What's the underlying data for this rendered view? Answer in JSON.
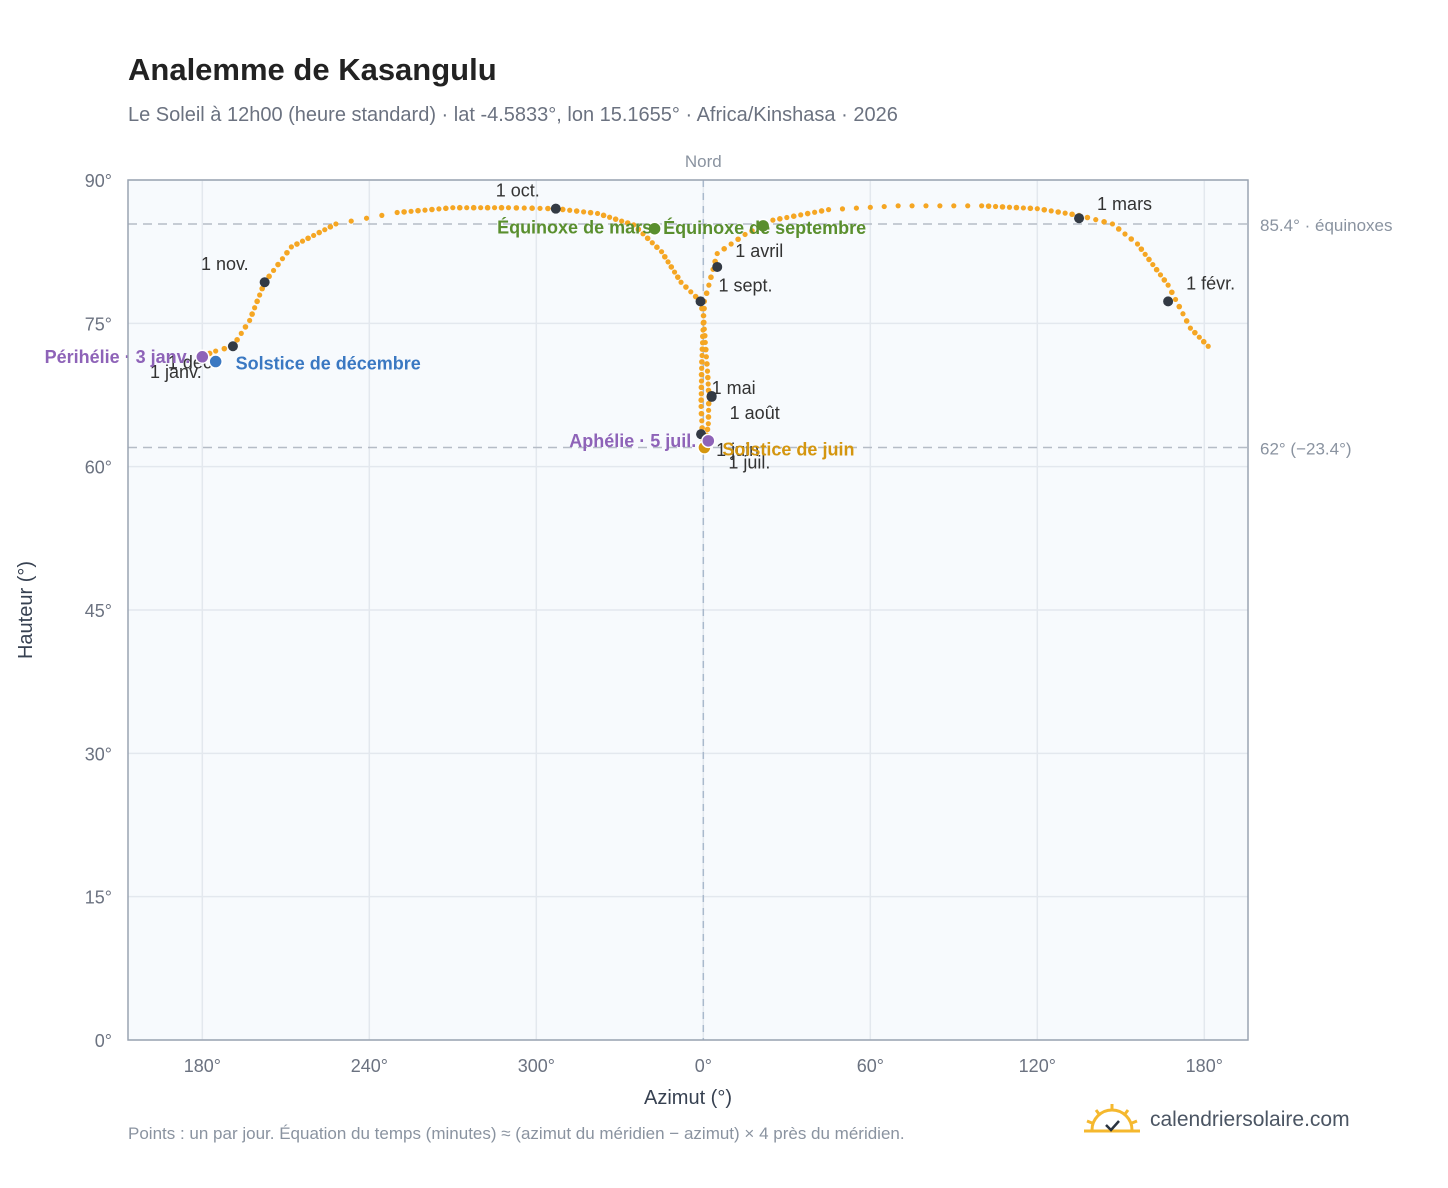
{
  "header": {
    "title": "Analemme de Kasangulu",
    "subtitle": "Le Soleil à 12h00 (heure standard) · lat -4.5833°, lon 15.1655° · Africa/Kinshasa · 2026"
  },
  "footer": {
    "note": "Points : un par jour. Équation du temps (minutes) ≈ (azimut du méridien − azimut) × 4 près du méridien.",
    "brand": "calendriersolaire.com"
  },
  "colors": {
    "curve": "#f5a623",
    "month_dot": "#333a44",
    "equinox": "#5a8f2e",
    "june_solstice": "#d4960f",
    "december_solstice": "#3a78c2",
    "apsis": "#8e63b8",
    "plot_bg": "#f7fafd",
    "grid": "#e3e8ee",
    "ref_line": "#b5bcc6"
  },
  "chart_data": {
    "type": "scatter",
    "xlabel": "Azimut (°)",
    "ylabel": "Hauteur (°)",
    "x_ticks": [
      "180°",
      "240°",
      "300°",
      "0°",
      "60°",
      "120°",
      "180°"
    ],
    "y_ticks": [
      "0°",
      "15°",
      "30°",
      "45°",
      "60°",
      "75°",
      "90°"
    ],
    "ylim": [
      0,
      90
    ],
    "xlim_shifted_deg": [
      153.3,
      555.7
    ],
    "north_label": "Nord",
    "grid": true,
    "reference_lines": [
      {
        "altitude": 85.4,
        "label": "85.4° · équinoxes"
      },
      {
        "altitude": 62,
        "label": "62° (−23.4°)"
      }
    ],
    "curve": {
      "description": "daily sun position at 12:00 standard time (one point per day)",
      "segments": [
        {
          "points": [
            [
              180.5,
              71.6
            ],
            [
              184.8,
              72.1
            ],
            [
              191.0,
              72.6
            ],
            [
              197.0,
              75.3
            ],
            [
              202.4,
              79.3
            ],
            [
              212.0,
              83.0
            ],
            [
              228.0,
              85.4
            ],
            [
              250.0,
              86.6
            ],
            [
              270.0,
              87.1
            ],
            [
              290.0,
              87.1
            ],
            [
              307.0,
              87.0
            ],
            [
              322.0,
              86.5
            ],
            [
              335.0,
              85.3
            ],
            [
              345.0,
              82.5
            ],
            [
              352.0,
              79.3
            ],
            [
              359.0,
              77.3
            ],
            [
              360.0,
              75.8
            ],
            [
              360.7,
              73.0
            ],
            [
              361.5,
              70.0
            ],
            [
              362.0,
              67.3
            ],
            [
              361.8,
              64.5
            ],
            [
              361.2,
              63.3
            ],
            [
              360.4,
              62.1
            ],
            [
              359.7,
              63.3
            ],
            [
              359.2,
              66.3
            ],
            [
              359.4,
              70.3
            ],
            [
              359.9,
              74.3
            ],
            [
              360.4,
              77.3
            ],
            [
              362.0,
              79.0
            ],
            [
              365.0,
              82.3
            ],
            [
              375.0,
              84.3
            ],
            [
              385.0,
              85.8
            ],
            [
              405.0,
              86.9
            ],
            [
              430.0,
              87.3
            ],
            [
              460.0,
              87.3
            ],
            [
              480.0,
              87.0
            ],
            [
              495.0,
              86.3
            ],
            [
              507.0,
              85.4
            ],
            [
              516.0,
              83.3
            ],
            [
              527.0,
              79.0
            ],
            [
              535.0,
              74.5
            ],
            [
              541.4,
              72.6
            ]
          ]
        }
      ]
    },
    "month_markers": [
      {
        "label": "1 janv.",
        "azimuth": 180.5,
        "altitude": 71.6
      },
      {
        "label": "1 févr.",
        "azimuth": 527.0,
        "altitude": 77.3
      },
      {
        "label": "1 mars",
        "azimuth": 495.0,
        "altitude": 86.0
      },
      {
        "label": "1 avril",
        "azimuth": 365.0,
        "altitude": 80.9
      },
      {
        "label": "1 mai",
        "azimuth": 363.0,
        "altitude": 67.4
      },
      {
        "label": "1 juin",
        "azimuth": 359.2,
        "altitude": 63.4
      },
      {
        "label": "1 juil.",
        "azimuth": 360.4,
        "altitude": 62.1
      },
      {
        "label": "1 août",
        "azimuth": 363.0,
        "altitude": 67.3
      },
      {
        "label": "1 sept.",
        "azimuth": 359.0,
        "altitude": 77.3
      },
      {
        "label": "1 oct.",
        "azimuth": 307.0,
        "altitude": 87.0
      },
      {
        "label": "1 nov.",
        "azimuth": 202.4,
        "altitude": 79.3
      },
      {
        "label": "1 déc.",
        "azimuth": 191.0,
        "altitude": 72.6
      }
    ],
    "events": [
      {
        "label": "Équinoxe de mars",
        "azimuth": 342.5,
        "altitude": 84.9,
        "kind": "equinox"
      },
      {
        "label": "Équinoxe de septembre",
        "azimuth": 381.5,
        "altitude": 85.2,
        "kind": "equinox"
      },
      {
        "label": "Solstice de juin",
        "azimuth": 360.4,
        "altitude": 62.0,
        "kind": "june_solstice"
      },
      {
        "label": "Solstice de décembre",
        "azimuth": 184.8,
        "altitude": 71.0,
        "kind": "december_solstice"
      },
      {
        "label": "Périhélie · 3 janv.",
        "azimuth": 180.0,
        "altitude": 71.5,
        "kind": "apsis"
      },
      {
        "label": "Aphélie · 5 juil.",
        "azimuth": 361.8,
        "altitude": 62.7,
        "kind": "apsis"
      }
    ]
  }
}
